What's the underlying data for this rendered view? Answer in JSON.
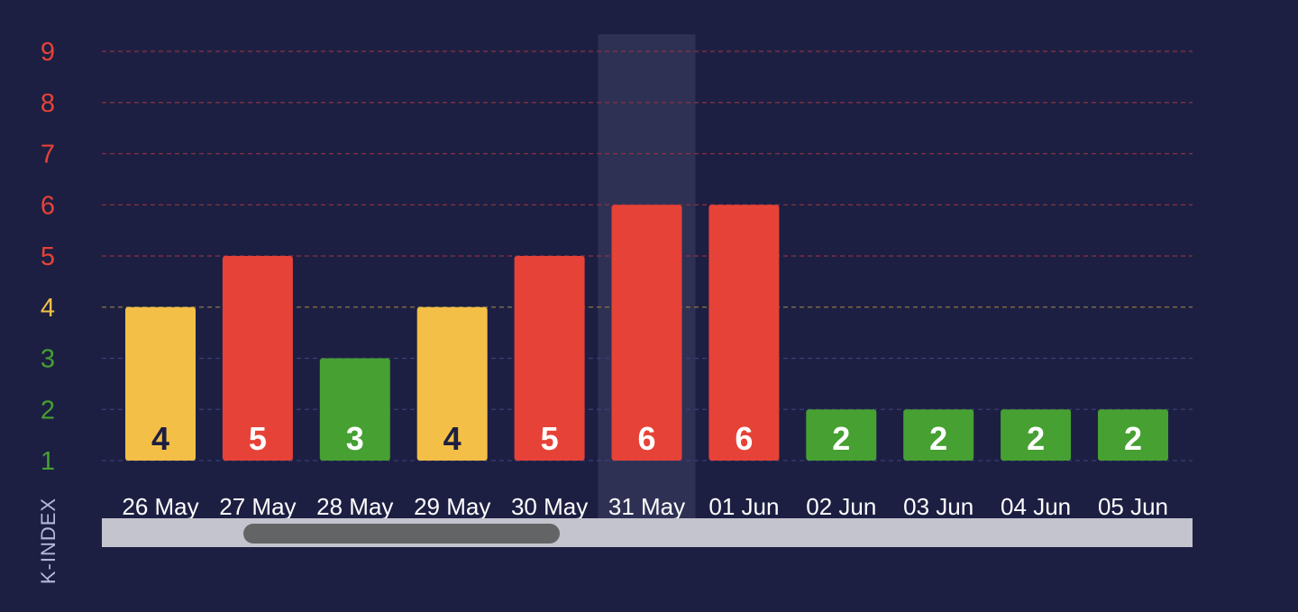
{
  "chart_data": {
    "type": "bar",
    "ylabel": "K-INDEX",
    "categories": [
      "26 May",
      "27 May",
      "28 May",
      "29 May",
      "30 May",
      "31 May",
      "01 Jun",
      "02 Jun",
      "03 Jun",
      "04 Jun",
      "05 Jun"
    ],
    "values": [
      4,
      5,
      3,
      4,
      5,
      6,
      6,
      2,
      2,
      2,
      2
    ],
    "y_ticks": [
      "1",
      "2",
      "3",
      "4",
      "5",
      "6",
      "7",
      "8",
      "9"
    ],
    "ylim": [
      1,
      9
    ],
    "highlighted_category": "31 May",
    "grid": true,
    "colors": {
      "background": "#1d1f42",
      "low": "#46a032",
      "moderate": "#f3bf47",
      "high": "#e74237",
      "label_dark": "#1d1f42",
      "label_light": "#ffffff",
      "grid_low": "#3a3f73",
      "grid_moderate": "#8c7a44",
      "grid_high": "#8a3243",
      "tick_low": "#46a032",
      "tick_moderate": "#f3bf47",
      "tick_high": "#e74237",
      "category_label": "#ffffff",
      "highlight_band": "#2f3154"
    }
  },
  "scrollbar": {
    "thumb_position_fraction": 0.13,
    "thumb_size_fraction": 0.29
  }
}
